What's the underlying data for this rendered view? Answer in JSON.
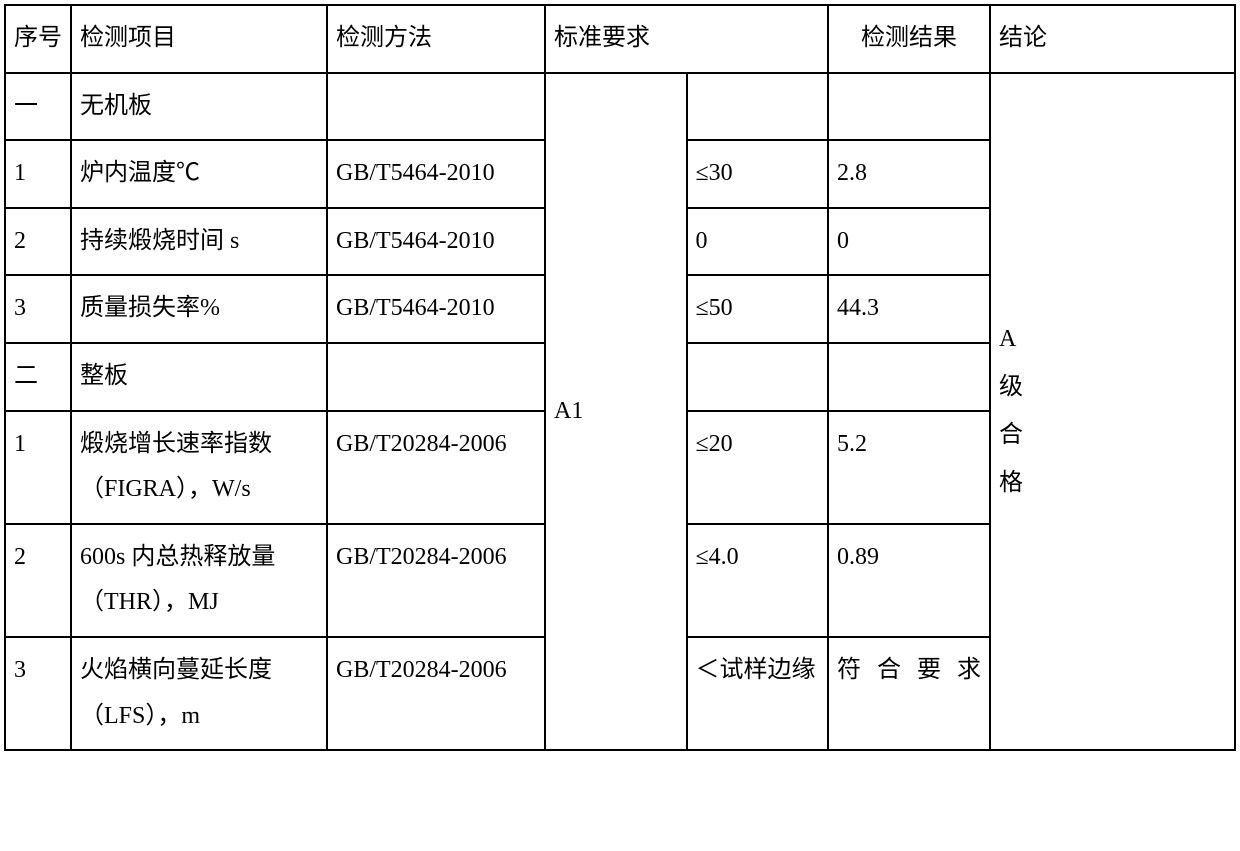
{
  "table": {
    "headers": {
      "seq": "序号",
      "item": "检测项目",
      "method": "检测方法",
      "standard": "标准要求",
      "result": "检测结果",
      "conclusion": "结论"
    },
    "merged_standard_label": "A1",
    "merged_conclusion": "A\n级\n合\n格",
    "sections": [
      {
        "seq": "一",
        "label": "无机板",
        "rows": [
          {
            "seq": "1",
            "item": "炉内温度℃",
            "method": "GB/T5464-2010",
            "standard": "≤30",
            "result": "2.8"
          },
          {
            "seq": "2",
            "item": "持续煅烧时间 s",
            "method": "GB/T5464-2010",
            "standard": "0",
            "result": "0"
          },
          {
            "seq": "3",
            "item": "质量损失率%",
            "method": "GB/T5464-2010",
            "standard": "≤50",
            "result": "44.3"
          }
        ]
      },
      {
        "seq": "二",
        "label": "整板",
        "rows": [
          {
            "seq": "1",
            "item": "煅烧增长速率指数（FIGRA），W/s",
            "method": "GB/T20284-2006",
            "standard": "≤20",
            "result": "5.2"
          },
          {
            "seq": "2",
            "item": "600s 内总热释放量（THR），MJ",
            "method": "GB/T20284-2006",
            "standard": "≤4.0",
            "result": "0.89"
          },
          {
            "seq": "3",
            "item": "火焰横向蔓延长度（LFS），m",
            "method": "GB/T20284-2006",
            "standard": "＜试样边缘",
            "result": "符合要求"
          }
        ]
      }
    ]
  }
}
